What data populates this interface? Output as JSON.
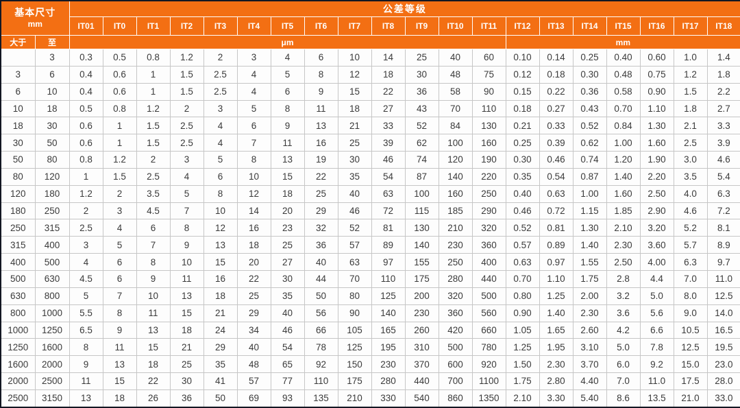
{
  "table": {
    "header": {
      "basic_size_label": "基本尺寸",
      "basic_size_unit": "mm",
      "over_label": "大于",
      "upto_label": "至",
      "tolerance_title": "公差等级",
      "micro_unit": "μm",
      "milli_unit": "mm",
      "micro_span": 13,
      "milli_span": 7,
      "grades": [
        "IT01",
        "IT0",
        "IT1",
        "IT2",
        "IT3",
        "IT4",
        "IT5",
        "IT6",
        "IT7",
        "IT8",
        "IT9",
        "IT10",
        "IT11",
        "IT12",
        "IT13",
        "IT14",
        "IT15",
        "IT16",
        "IT17",
        "IT18"
      ]
    },
    "rows": [
      {
        "over": "",
        "upto": "3",
        "values": [
          "0.3",
          "0.5",
          "0.8",
          "1.2",
          "2",
          "3",
          "4",
          "6",
          "10",
          "14",
          "25",
          "40",
          "60",
          "0.10",
          "0.14",
          "0.25",
          "0.40",
          "0.60",
          "1.0",
          "1.4"
        ]
      },
      {
        "over": "3",
        "upto": "6",
        "values": [
          "0.4",
          "0.6",
          "1",
          "1.5",
          "2.5",
          "4",
          "5",
          "8",
          "12",
          "18",
          "30",
          "48",
          "75",
          "0.12",
          "0.18",
          "0.30",
          "0.48",
          "0.75",
          "1.2",
          "1.8"
        ]
      },
      {
        "over": "6",
        "upto": "10",
        "values": [
          "0.4",
          "0.6",
          "1",
          "1.5",
          "2.5",
          "4",
          "6",
          "9",
          "15",
          "22",
          "36",
          "58",
          "90",
          "0.15",
          "0.22",
          "0.36",
          "0.58",
          "0.90",
          "1.5",
          "2.2"
        ]
      },
      {
        "over": "10",
        "upto": "18",
        "values": [
          "0.5",
          "0.8",
          "1.2",
          "2",
          "3",
          "5",
          "8",
          "11",
          "18",
          "27",
          "43",
          "70",
          "110",
          "0.18",
          "0.27",
          "0.43",
          "0.70",
          "1.10",
          "1.8",
          "2.7"
        ]
      },
      {
        "over": "18",
        "upto": "30",
        "values": [
          "0.6",
          "1",
          "1.5",
          "2.5",
          "4",
          "6",
          "9",
          "13",
          "21",
          "33",
          "52",
          "84",
          "130",
          "0.21",
          "0.33",
          "0.52",
          "0.84",
          "1.30",
          "2.1",
          "3.3"
        ]
      },
      {
        "over": "30",
        "upto": "50",
        "values": [
          "0.6",
          "1",
          "1.5",
          "2.5",
          "4",
          "7",
          "11",
          "16",
          "25",
          "39",
          "62",
          "100",
          "160",
          "0.25",
          "0.39",
          "0.62",
          "1.00",
          "1.60",
          "2.5",
          "3.9"
        ]
      },
      {
        "over": "50",
        "upto": "80",
        "values": [
          "0.8",
          "1.2",
          "2",
          "3",
          "5",
          "8",
          "13",
          "19",
          "30",
          "46",
          "74",
          "120",
          "190",
          "0.30",
          "0.46",
          "0.74",
          "1.20",
          "1.90",
          "3.0",
          "4.6"
        ]
      },
      {
        "over": "80",
        "upto": "120",
        "values": [
          "1",
          "1.5",
          "2.5",
          "4",
          "6",
          "10",
          "15",
          "22",
          "35",
          "54",
          "87",
          "140",
          "220",
          "0.35",
          "0.54",
          "0.87",
          "1.40",
          "2.20",
          "3.5",
          "5.4"
        ]
      },
      {
        "over": "120",
        "upto": "180",
        "values": [
          "1.2",
          "2",
          "3.5",
          "5",
          "8",
          "12",
          "18",
          "25",
          "40",
          "63",
          "100",
          "160",
          "250",
          "0.40",
          "0.63",
          "1.00",
          "1.60",
          "2.50",
          "4.0",
          "6.3"
        ]
      },
      {
        "over": "180",
        "upto": "250",
        "values": [
          "2",
          "3",
          "4.5",
          "7",
          "10",
          "14",
          "20",
          "29",
          "46",
          "72",
          "115",
          "185",
          "290",
          "0.46",
          "0.72",
          "1.15",
          "1.85",
          "2.90",
          "4.6",
          "7.2"
        ]
      },
      {
        "over": "250",
        "upto": "315",
        "values": [
          "2.5",
          "4",
          "6",
          "8",
          "12",
          "16",
          "23",
          "32",
          "52",
          "81",
          "130",
          "210",
          "320",
          "0.52",
          "0.81",
          "1.30",
          "2.10",
          "3.20",
          "5.2",
          "8.1"
        ]
      },
      {
        "over": "315",
        "upto": "400",
        "values": [
          "3",
          "5",
          "7",
          "9",
          "13",
          "18",
          "25",
          "36",
          "57",
          "89",
          "140",
          "230",
          "360",
          "0.57",
          "0.89",
          "1.40",
          "2.30",
          "3.60",
          "5.7",
          "8.9"
        ]
      },
      {
        "over": "400",
        "upto": "500",
        "values": [
          "4",
          "6",
          "8",
          "10",
          "15",
          "20",
          "27",
          "40",
          "63",
          "97",
          "155",
          "250",
          "400",
          "0.63",
          "0.97",
          "1.55",
          "2.50",
          "4.00",
          "6.3",
          "9.7"
        ]
      },
      {
        "over": "500",
        "upto": "630",
        "values": [
          "4.5",
          "6",
          "9",
          "11",
          "16",
          "22",
          "30",
          "44",
          "70",
          "110",
          "175",
          "280",
          "440",
          "0.70",
          "1.10",
          "1.75",
          "2.8",
          "4.4",
          "7.0",
          "11.0"
        ]
      },
      {
        "over": "630",
        "upto": "800",
        "values": [
          "5",
          "7",
          "10",
          "13",
          "18",
          "25",
          "35",
          "50",
          "80",
          "125",
          "200",
          "320",
          "500",
          "0.80",
          "1.25",
          "2.00",
          "3.2",
          "5.0",
          "8.0",
          "12.5"
        ]
      },
      {
        "over": "800",
        "upto": "1000",
        "values": [
          "5.5",
          "8",
          "11",
          "15",
          "21",
          "29",
          "40",
          "56",
          "90",
          "140",
          "230",
          "360",
          "560",
          "0.90",
          "1.40",
          "2.30",
          "3.6",
          "5.6",
          "9.0",
          "14.0"
        ]
      },
      {
        "over": "1000",
        "upto": "1250",
        "values": [
          "6.5",
          "9",
          "13",
          "18",
          "24",
          "34",
          "46",
          "66",
          "105",
          "165",
          "260",
          "420",
          "660",
          "1.05",
          "1.65",
          "2.60",
          "4.2",
          "6.6",
          "10.5",
          "16.5"
        ]
      },
      {
        "over": "1250",
        "upto": "1600",
        "values": [
          "8",
          "11",
          "15",
          "21",
          "29",
          "40",
          "54",
          "78",
          "125",
          "195",
          "310",
          "500",
          "780",
          "1.25",
          "1.95",
          "3.10",
          "5.0",
          "7.8",
          "12.5",
          "19.5"
        ]
      },
      {
        "over": "1600",
        "upto": "2000",
        "values": [
          "9",
          "13",
          "18",
          "25",
          "35",
          "48",
          "65",
          "92",
          "150",
          "230",
          "370",
          "600",
          "920",
          "1.50",
          "2.30",
          "3.70",
          "6.0",
          "9.2",
          "15.0",
          "23.0"
        ]
      },
      {
        "over": "2000",
        "upto": "2500",
        "values": [
          "11",
          "15",
          "22",
          "30",
          "41",
          "57",
          "77",
          "110",
          "175",
          "280",
          "440",
          "700",
          "1100",
          "1.75",
          "2.80",
          "4.40",
          "7.0",
          "11.0",
          "17.5",
          "28.0"
        ]
      },
      {
        "over": "2500",
        "upto": "3150",
        "values": [
          "13",
          "18",
          "26",
          "36",
          "50",
          "69",
          "93",
          "135",
          "210",
          "330",
          "540",
          "860",
          "1350",
          "2.10",
          "3.30",
          "5.40",
          "8.6",
          "13.5",
          "21.0",
          "33.0"
        ]
      }
    ]
  },
  "colors": {
    "header_bg": "#F36F13",
    "header_text": "#FFFFFF",
    "grid_line": "#C6C6C6",
    "body_text": "#3A3A3A",
    "frame": "#131722"
  }
}
